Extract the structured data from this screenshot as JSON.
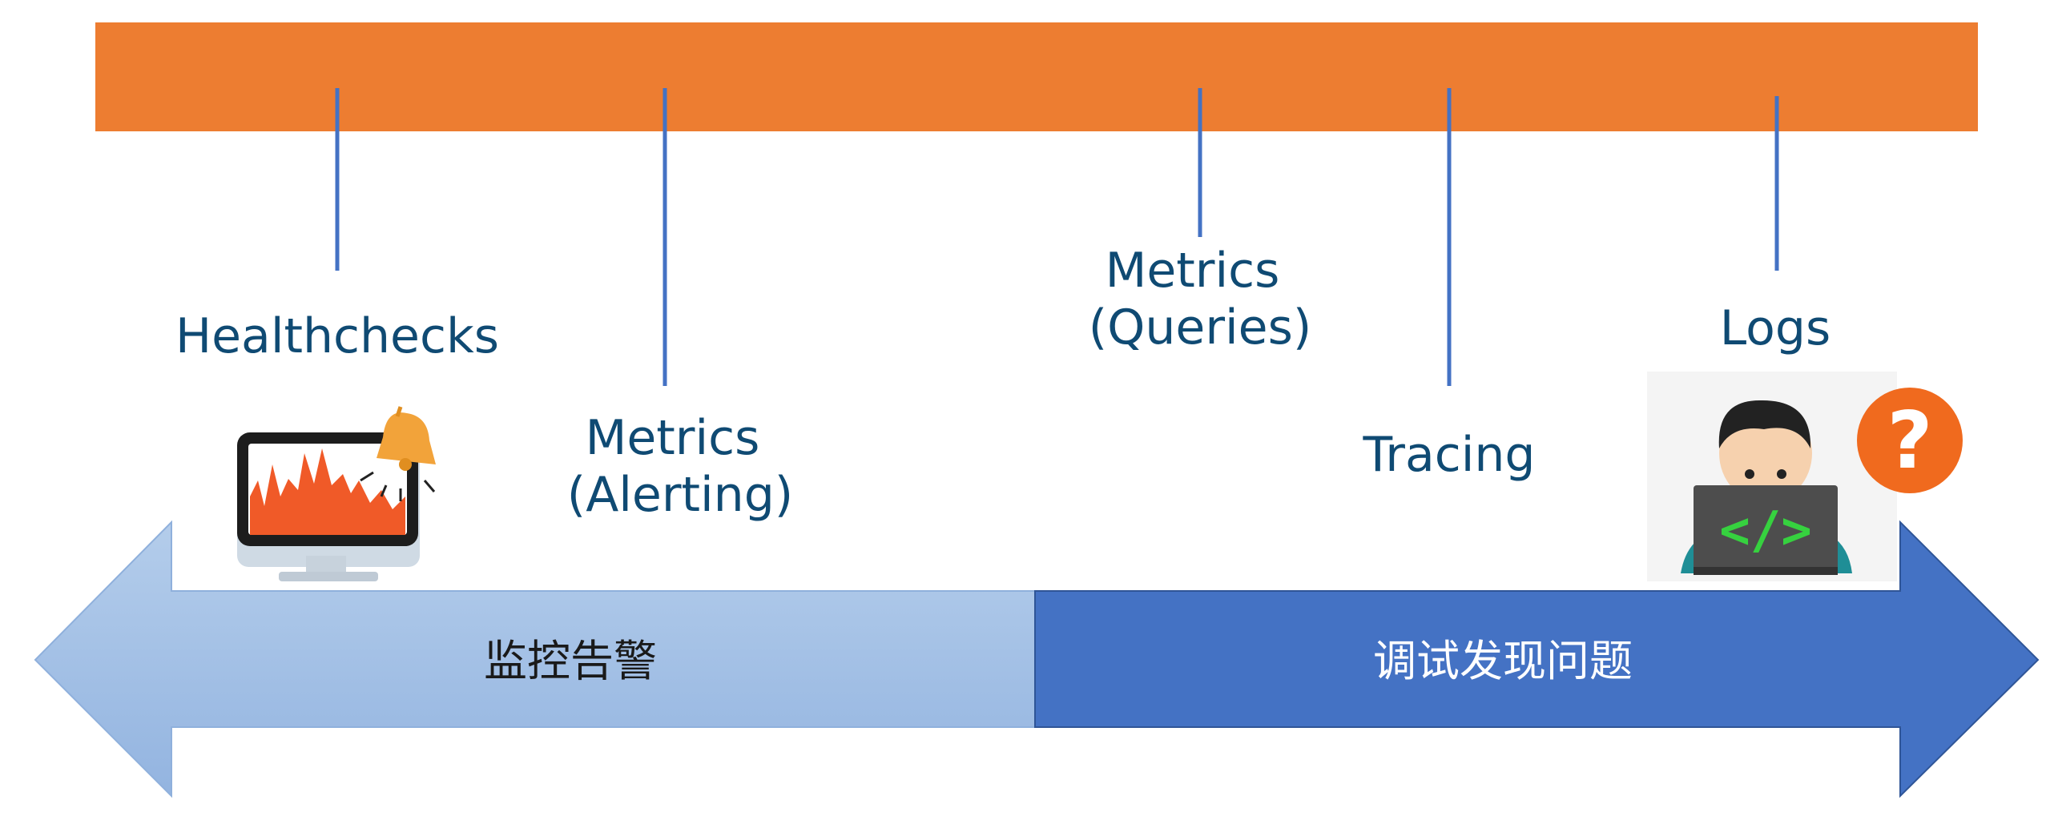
{
  "colors": {
    "orange_bar": "#ED7D31",
    "connector": "#4472C4",
    "label_text": "#0F4A73",
    "arrow_left": "#A9C4E6",
    "arrow_right": "#4472C4",
    "question_badge": "#F06A1E"
  },
  "items": [
    {
      "lines": [
        "Healthchecks"
      ]
    },
    {
      "lines": [
        "Metrics",
        "(Alerting)"
      ]
    },
    {
      "lines": [
        "Metrics",
        "(Queries)"
      ]
    },
    {
      "lines": [
        "Tracing"
      ]
    },
    {
      "lines": [
        "Logs"
      ]
    }
  ],
  "arrow": {
    "left_label": "监控告警",
    "right_label": "调试发现问题"
  },
  "icons": {
    "left": "monitor-alert-icon",
    "right": "developer-at-laptop-icon",
    "badge": "question-mark-icon",
    "badge_glyph": "?"
  }
}
